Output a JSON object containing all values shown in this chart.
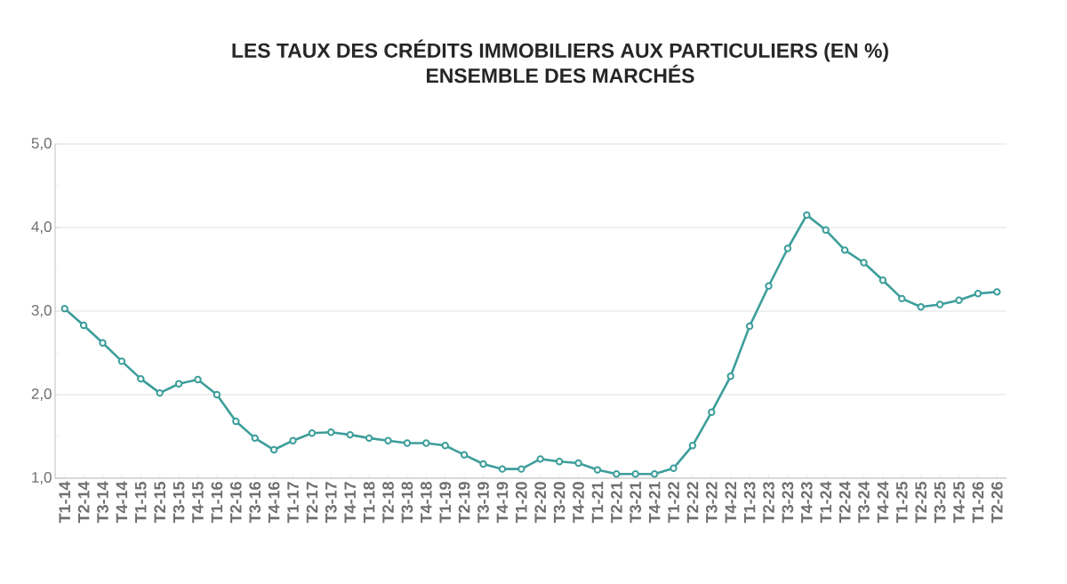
{
  "chart_data": {
    "type": "line",
    "title": "LES TAUX DES CRÉDITS IMMOBILIERS AUX PARTICULIERS (EN %)",
    "subtitle": "ENSEMBLE DES MARCHÉS",
    "categories": [
      "T1-14",
      "T2-14",
      "T3-14",
      "T4-14",
      "T1-15",
      "T2-15",
      "T3-15",
      "T4-15",
      "T1-16",
      "T2-16",
      "T3-16",
      "T4-16",
      "T1-17",
      "T2-17",
      "T3-17",
      "T4-17",
      "T1-18",
      "T2-18",
      "T3-18",
      "T4-18",
      "T1-19",
      "T2-19",
      "T3-19",
      "T4-19",
      "T1-20",
      "T2-20",
      "T3-20",
      "T4-20",
      "T1-21",
      "T2-21",
      "T3-21",
      "T4-21",
      "T1-22",
      "T2-22",
      "T3-22",
      "T4-22",
      "T1-23",
      "T2-23",
      "T3-23",
      "T4-23",
      "T1-24",
      "T2-24",
      "T3-24",
      "T4-24",
      "T1-25",
      "T2-25",
      "T3-25",
      "T4-25",
      "T1-26",
      "T2-26"
    ],
    "series": [
      {
        "color": "#3d9e9b",
        "values": [
          3.03,
          2.83,
          2.62,
          2.4,
          2.19,
          2.02,
          2.13,
          2.18,
          2.0,
          1.68,
          1.48,
          1.34,
          1.45,
          1.54,
          1.55,
          1.52,
          1.48,
          1.45,
          1.42,
          1.42,
          1.39,
          1.28,
          1.17,
          1.11,
          1.11,
          1.23,
          1.2,
          1.18,
          1.1,
          1.05,
          1.05,
          1.05,
          1.12,
          1.39,
          1.79,
          2.22,
          2.82,
          3.3,
          3.75,
          4.15,
          3.97,
          3.73,
          3.58,
          3.37,
          3.15,
          3.05,
          3.08,
          3.13,
          3.21,
          3.23
        ]
      }
    ],
    "ylim": [
      1,
      5
    ],
    "yticks": [
      {
        "value": 1,
        "label": "1,0"
      },
      {
        "value": 2,
        "label": "2,0"
      },
      {
        "value": 3,
        "label": "3,0"
      },
      {
        "value": 4,
        "label": "4,0"
      },
      {
        "value": 5,
        "label": "5,0"
      }
    ],
    "grid": "y",
    "marker": "circle",
    "line_style": "solid"
  }
}
